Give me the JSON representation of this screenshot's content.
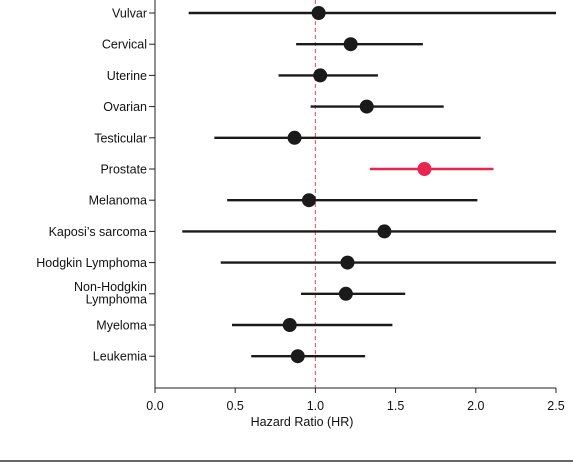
{
  "chart_data": {
    "type": "forest",
    "xlabel": "Hazard Ratio (HR)",
    "ylabel": "",
    "title": "",
    "xlim": [
      0.0,
      2.5
    ],
    "xticks": [
      0.0,
      0.5,
      1.0,
      1.5,
      2.0,
      2.5
    ],
    "xtick_labels": [
      "0.0",
      "0.5",
      "1.0",
      "1.5",
      "2.0",
      "2.5"
    ],
    "reference_line": {
      "x": 1.0,
      "style": "dashed",
      "color": "#e8647a"
    },
    "grid": false,
    "legend": "none",
    "default_color": "#1a1a1a",
    "highlight_color": "#e8244f",
    "rows": [
      {
        "label": "Vulvar",
        "hr": 1.02,
        "lo": 0.21,
        "hi": 2.5,
        "highlight": false
      },
      {
        "label": "Cervical",
        "hr": 1.22,
        "lo": 0.88,
        "hi": 1.67,
        "highlight": false
      },
      {
        "label": "Uterine",
        "hr": 1.03,
        "lo": 0.77,
        "hi": 1.39,
        "highlight": false
      },
      {
        "label": "Ovarian",
        "hr": 1.32,
        "lo": 0.97,
        "hi": 1.8,
        "highlight": false
      },
      {
        "label": "Testicular",
        "hr": 0.87,
        "lo": 0.37,
        "hi": 2.03,
        "highlight": false
      },
      {
        "label": "Prostate",
        "hr": 1.68,
        "lo": 1.34,
        "hi": 2.11,
        "highlight": true
      },
      {
        "label": "Melanoma",
        "hr": 0.96,
        "lo": 0.45,
        "hi": 2.01,
        "highlight": false
      },
      {
        "label": "Kaposi’s sarcoma",
        "hr": 1.43,
        "lo": 0.17,
        "hi": 2.5,
        "highlight": false
      },
      {
        "label": "Hodgkin Lymphoma",
        "hr": 1.2,
        "lo": 0.41,
        "hi": 2.5,
        "highlight": false
      },
      {
        "label": "Non-Hodgkin\nLymphoma",
        "hr": 1.19,
        "lo": 0.91,
        "hi": 1.56,
        "highlight": false
      },
      {
        "label": "Myeloma",
        "hr": 0.84,
        "lo": 0.48,
        "hi": 1.48,
        "highlight": false
      },
      {
        "label": "Leukemia",
        "hr": 0.89,
        "lo": 0.6,
        "hi": 1.31,
        "highlight": false
      }
    ]
  }
}
